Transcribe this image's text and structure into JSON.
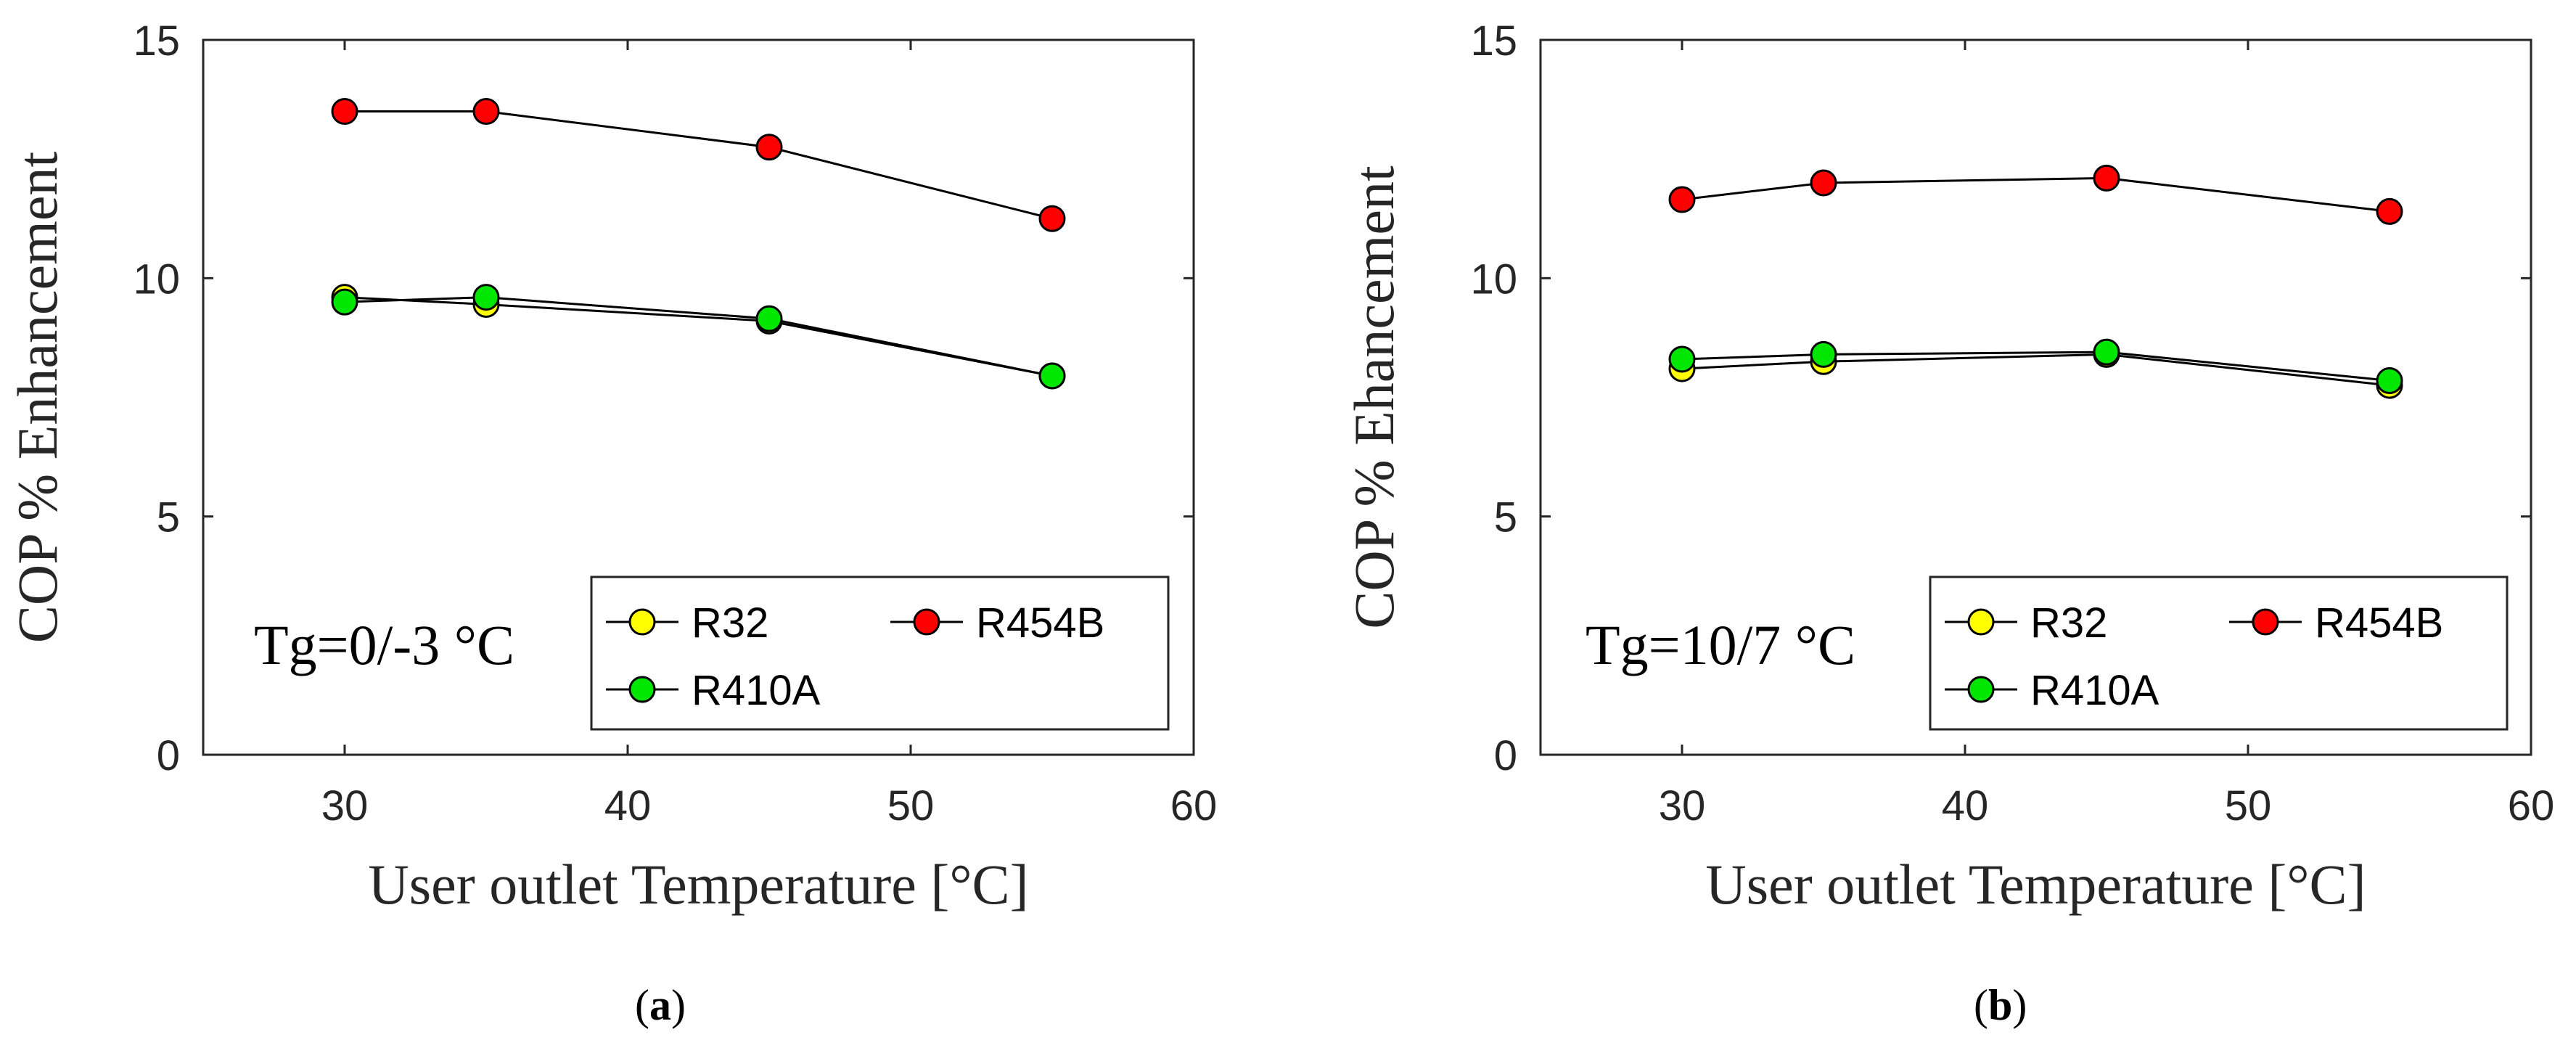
{
  "chart_data": [
    {
      "type": "line",
      "panel": "(a)",
      "caption_letter": "a",
      "annotation": "Tg=0/-3 °C",
      "xlabel": "User outlet Temperature [°C]",
      "ylabel": "COP % Enhancement",
      "xlim": [
        25,
        60
      ],
      "ylim": [
        0,
        15
      ],
      "xticks": [
        30,
        40,
        50,
        60
      ],
      "yticks": [
        0,
        5,
        10,
        15
      ],
      "grid": false,
      "legend_position": "bottom-right",
      "x": [
        30,
        35,
        45,
        55
      ],
      "series": [
        {
          "name": "R32",
          "color": "#FFFF00",
          "values": [
            9.6,
            9.45,
            9.1,
            7.95
          ]
        },
        {
          "name": "R454B",
          "color": "#FF0000",
          "values": [
            13.5,
            13.5,
            12.75,
            11.25
          ]
        },
        {
          "name": "R410A",
          "color": "#00E600",
          "values": [
            9.5,
            9.6,
            9.15,
            7.95
          ]
        }
      ]
    },
    {
      "type": "line",
      "panel": "(b)",
      "caption_letter": "b",
      "annotation": "Tg=10/7 °C",
      "xlabel": "User outlet Temperature [°C]",
      "ylabel": "COP % Ehancement",
      "xlim": [
        25,
        60
      ],
      "ylim": [
        0,
        15
      ],
      "xticks": [
        30,
        40,
        50,
        60
      ],
      "yticks": [
        0,
        5,
        10,
        15
      ],
      "grid": false,
      "legend_position": "bottom-right",
      "x": [
        30,
        35,
        45,
        55
      ],
      "series": [
        {
          "name": "R32",
          "color": "#FFFF00",
          "values": [
            8.1,
            8.25,
            8.4,
            7.75
          ]
        },
        {
          "name": "R454B",
          "color": "#FF0000",
          "values": [
            11.65,
            12.0,
            12.1,
            11.4
          ]
        },
        {
          "name": "R410A",
          "color": "#00E600",
          "values": [
            8.3,
            8.4,
            8.45,
            7.85
          ]
        }
      ]
    }
  ]
}
